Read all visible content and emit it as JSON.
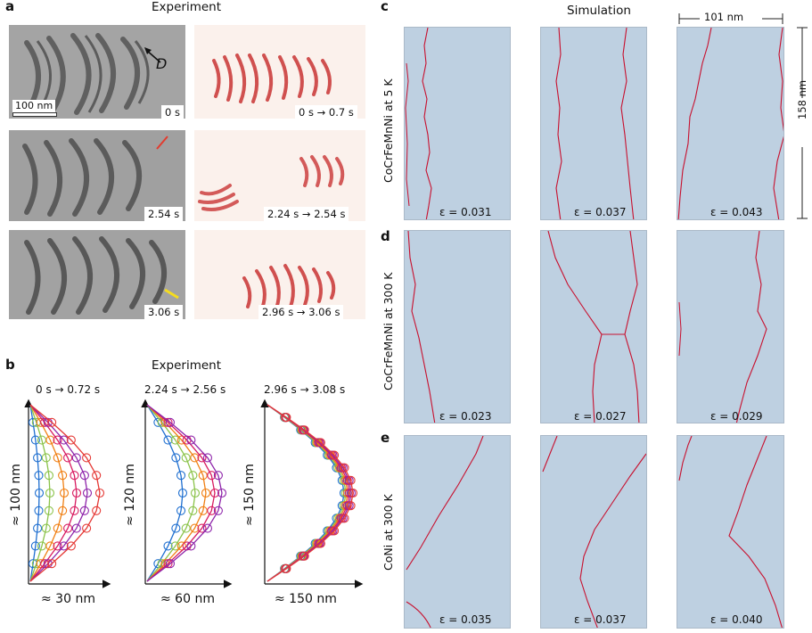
{
  "labels": {
    "a": "a",
    "b": "b",
    "c": "c",
    "d": "d",
    "e": "e"
  },
  "panel_a": {
    "title": "Experiment",
    "scale_bar": "100 nm",
    "dislocation_label": "D",
    "tem_times": [
      "0 s",
      "2.54 s",
      "3.06 s"
    ],
    "diff_times": [
      "0 s → 0.7 s",
      "2.24 s → 2.54 s",
      "2.96 s → 3.06 s"
    ],
    "arrow_colors": [
      "#111111",
      "#e23b2e",
      "#f5dc1e"
    ]
  },
  "panel_b": {
    "title": "Experiment",
    "plots": [
      {
        "interval": "0 s → 0.72 s",
        "x_label": "≈ 30 nm",
        "y_label": "≈ 100 nm"
      },
      {
        "interval": "2.24 s → 2.56 s",
        "x_label": "≈ 60 nm",
        "y_label": "≈ 120 nm"
      },
      {
        "interval": "2.96 s → 3.08 s",
        "x_label": "≈ 150 nm",
        "y_label": "≈ 150 nm"
      }
    ],
    "curve_colors": [
      "#1f6fd0",
      "#8bc34a",
      "#f07f13",
      "#d81b60",
      "#8e24aa",
      "#e53935"
    ]
  },
  "panel_c": {
    "title": "Simulation",
    "width_label": "101 nm",
    "height_label": "158 nm",
    "row_label": "CoCrFeMnNi at 5 K",
    "strains": [
      "ε = 0.031",
      "ε = 0.037",
      "ε = 0.043"
    ]
  },
  "panel_d": {
    "row_label": "CoCrFeMnNi at 300 K",
    "strains": [
      "ε = 0.023",
      "ε = 0.027",
      "ε = 0.029"
    ]
  },
  "panel_e": {
    "row_label": "CoNi at 300 K",
    "strains": [
      "ε = 0.035",
      "ε = 0.037",
      "ε = 0.040"
    ]
  },
  "colors": {
    "sim_background": "#bed0e1",
    "dislocation_line": "#c8102e",
    "heatmap": "#c62828",
    "tem_gray": "#9a9a9a"
  }
}
